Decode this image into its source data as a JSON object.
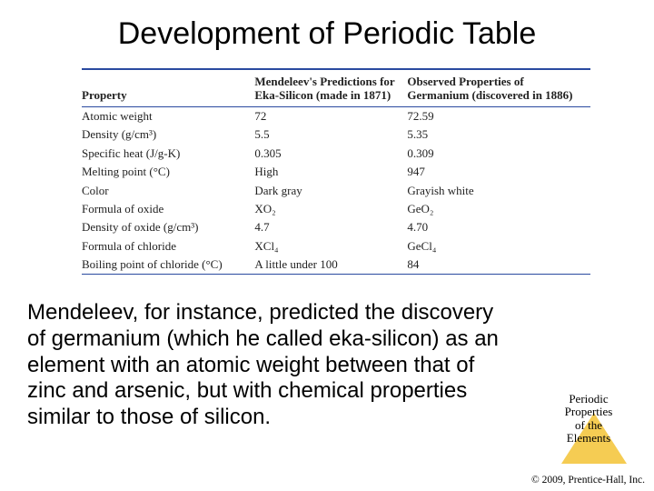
{
  "title": "Development of Periodic Table",
  "table": {
    "headers": {
      "property": "Property",
      "prediction": "Mendeleev's Predictions for Eka-Silicon (made in 1871)",
      "observed": "Observed Properties of Germanium (discovered in 1886)"
    },
    "rows": [
      {
        "prop": "Atomic weight",
        "pred": "72",
        "obs": "72.59"
      },
      {
        "prop": "Density (g/cm³)",
        "pred": "5.5",
        "obs": "5.35"
      },
      {
        "prop": "Specific heat (J/g-K)",
        "pred": "0.305",
        "obs": "0.309"
      },
      {
        "prop": "Melting point (°C)",
        "pred": "High",
        "obs": "947"
      },
      {
        "prop": "Color",
        "pred": "Dark gray",
        "obs": "Grayish white"
      },
      {
        "prop": "Formula of oxide",
        "pred": "XO₂",
        "obs": "GeO₂"
      },
      {
        "prop": "Density of oxide (g/cm³)",
        "pred": "4.7",
        "obs": "4.70"
      },
      {
        "prop": "Formula of chloride",
        "pred": "XCl₄",
        "obs": "GeCl₄"
      },
      {
        "prop": "Boiling point of chloride (°C)",
        "pred": "A little under 100",
        "obs": "84"
      }
    ]
  },
  "body_text": "Mendeleev, for instance, predicted the discovery of germanium (which he called eka-silicon) as an element with an atomic weight between that of zinc and arsenic, but with chemical properties similar to those of silicon.",
  "side_label": {
    "l1": "Periodic",
    "l2": "Properties",
    "l3": "of the",
    "l4": "Elements"
  },
  "copyright": "© 2009, Prentice-Hall, Inc.",
  "colors": {
    "rule": "#2a4aa0",
    "triangle": "#f4c94a",
    "bg": "#ffffff"
  }
}
